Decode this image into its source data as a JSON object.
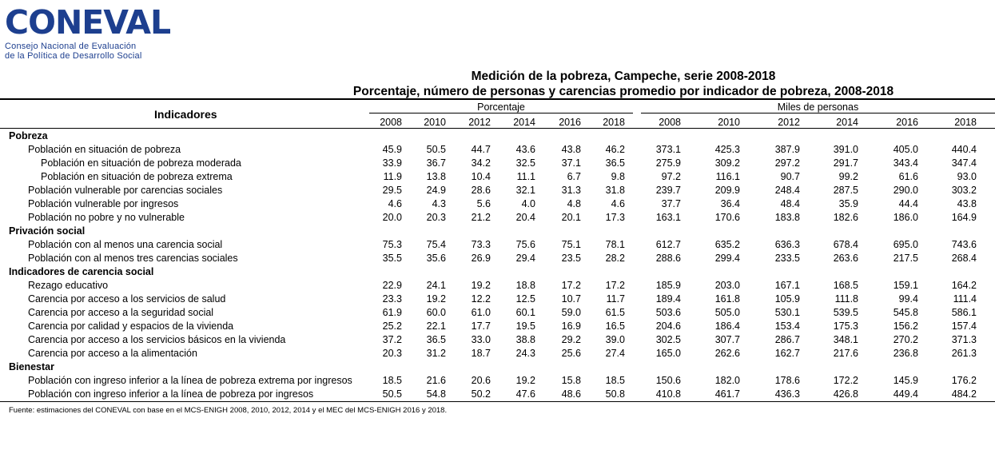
{
  "logo": {
    "word": "CONEVAL",
    "line1": "Consejo Nacional de Evaluación",
    "line2": "de la Política de Desarrollo Social"
  },
  "title": "Medición de la pobreza, Campeche, serie 2008-2018",
  "subtitle": "Porcentaje, número de personas y carencias promedio por indicador de pobreza, 2008-2018",
  "header": {
    "indicadores": "Indicadores",
    "group1": "Porcentaje",
    "group2": "Miles de personas",
    "years1": [
      "2008",
      "2010",
      "2012",
      "2014",
      "2016",
      "2018"
    ],
    "years2": [
      "2008",
      "2010",
      "2012",
      "2014",
      "2016",
      "2018"
    ]
  },
  "rows": [
    {
      "label": "Pobreza",
      "section": true,
      "indent": 0
    },
    {
      "label": "Población en situación de pobreza",
      "indent": 1,
      "pct": [
        "45.9",
        "50.5",
        "44.7",
        "43.6",
        "43.8",
        "46.2"
      ],
      "miles": [
        "373.1",
        "425.3",
        "387.9",
        "391.0",
        "405.0",
        "440.4"
      ]
    },
    {
      "label": "Población en situación de pobreza moderada",
      "indent": 2,
      "pct": [
        "33.9",
        "36.7",
        "34.2",
        "32.5",
        "37.1",
        "36.5"
      ],
      "miles": [
        "275.9",
        "309.2",
        "297.2",
        "291.7",
        "343.4",
        "347.4"
      ]
    },
    {
      "label": "Población en situación de pobreza extrema",
      "indent": 2,
      "pct": [
        "11.9",
        "13.8",
        "10.4",
        "11.1",
        "6.7",
        "9.8"
      ],
      "miles": [
        "97.2",
        "116.1",
        "90.7",
        "99.2",
        "61.6",
        "93.0"
      ]
    },
    {
      "label": "Población vulnerable por carencias sociales",
      "indent": 1,
      "pct": [
        "29.5",
        "24.9",
        "28.6",
        "32.1",
        "31.3",
        "31.8"
      ],
      "miles": [
        "239.7",
        "209.9",
        "248.4",
        "287.5",
        "290.0",
        "303.2"
      ]
    },
    {
      "label": "Población vulnerable por ingresos",
      "indent": 1,
      "pct": [
        "4.6",
        "4.3",
        "5.6",
        "4.0",
        "4.8",
        "4.6"
      ],
      "miles": [
        "37.7",
        "36.4",
        "48.4",
        "35.9",
        "44.4",
        "43.8"
      ]
    },
    {
      "label": "Población no pobre y no vulnerable",
      "indent": 1,
      "pct": [
        "20.0",
        "20.3",
        "21.2",
        "20.4",
        "20.1",
        "17.3"
      ],
      "miles": [
        "163.1",
        "170.6",
        "183.8",
        "182.6",
        "186.0",
        "164.9"
      ]
    },
    {
      "label": "Privación social",
      "section": true,
      "indent": 0
    },
    {
      "label": "Población con al menos una carencia social",
      "indent": 1,
      "pct": [
        "75.3",
        "75.4",
        "73.3",
        "75.6",
        "75.1",
        "78.1"
      ],
      "miles": [
        "612.7",
        "635.2",
        "636.3",
        "678.4",
        "695.0",
        "743.6"
      ]
    },
    {
      "label": "Población con al menos tres carencias sociales",
      "indent": 1,
      "pct": [
        "35.5",
        "35.6",
        "26.9",
        "29.4",
        "23.5",
        "28.2"
      ],
      "miles": [
        "288.6",
        "299.4",
        "233.5",
        "263.6",
        "217.5",
        "268.4"
      ]
    },
    {
      "label": "Indicadores de carencia social",
      "section": true,
      "indent": 0
    },
    {
      "label": "Rezago educativo",
      "indent": 1,
      "pct": [
        "22.9",
        "24.1",
        "19.2",
        "18.8",
        "17.2",
        "17.2"
      ],
      "miles": [
        "185.9",
        "203.0",
        "167.1",
        "168.5",
        "159.1",
        "164.2"
      ]
    },
    {
      "label": "Carencia por acceso a los servicios de salud",
      "indent": 1,
      "pct": [
        "23.3",
        "19.2",
        "12.2",
        "12.5",
        "10.7",
        "11.7"
      ],
      "miles": [
        "189.4",
        "161.8",
        "105.9",
        "111.8",
        "99.4",
        "111.4"
      ]
    },
    {
      "label": "Carencia por acceso a la seguridad social",
      "indent": 1,
      "pct": [
        "61.9",
        "60.0",
        "61.0",
        "60.1",
        "59.0",
        "61.5"
      ],
      "miles": [
        "503.6",
        "505.0",
        "530.1",
        "539.5",
        "545.8",
        "586.1"
      ]
    },
    {
      "label": "Carencia por calidad y espacios de la vivienda",
      "indent": 1,
      "pct": [
        "25.2",
        "22.1",
        "17.7",
        "19.5",
        "16.9",
        "16.5"
      ],
      "miles": [
        "204.6",
        "186.4",
        "153.4",
        "175.3",
        "156.2",
        "157.4"
      ]
    },
    {
      "label": "Carencia por acceso a los servicios básicos en la vivienda",
      "indent": 1,
      "pct": [
        "37.2",
        "36.5",
        "33.0",
        "38.8",
        "29.2",
        "39.0"
      ],
      "miles": [
        "302.5",
        "307.7",
        "286.7",
        "348.1",
        "270.2",
        "371.3"
      ]
    },
    {
      "label": "Carencia por acceso a la alimentación",
      "indent": 1,
      "pct": [
        "20.3",
        "31.2",
        "18.7",
        "24.3",
        "25.6",
        "27.4"
      ],
      "miles": [
        "165.0",
        "262.6",
        "162.7",
        "217.6",
        "236.8",
        "261.3"
      ]
    },
    {
      "label": "Bienestar",
      "section": true,
      "indent": 0
    },
    {
      "label": "Población con ingreso inferior a la línea de pobreza extrema por ingresos",
      "indent": 1,
      "pct": [
        "18.5",
        "21.6",
        "20.6",
        "19.2",
        "15.8",
        "18.5"
      ],
      "miles": [
        "150.6",
        "182.0",
        "178.6",
        "172.2",
        "145.9",
        "176.2"
      ]
    },
    {
      "label": "Población con ingreso inferior a la línea de pobreza por ingresos",
      "indent": 1,
      "pct": [
        "50.5",
        "54.8",
        "50.2",
        "47.6",
        "48.6",
        "50.8"
      ],
      "miles": [
        "410.8",
        "461.7",
        "436.3",
        "426.8",
        "449.4",
        "484.2"
      ]
    }
  ],
  "footnote": "Fuente: estimaciones del CONEVAL con base en el MCS-ENIGH 2008, 2010, 2012, 2014 y el MEC del MCS-ENIGH 2016 y 2018."
}
